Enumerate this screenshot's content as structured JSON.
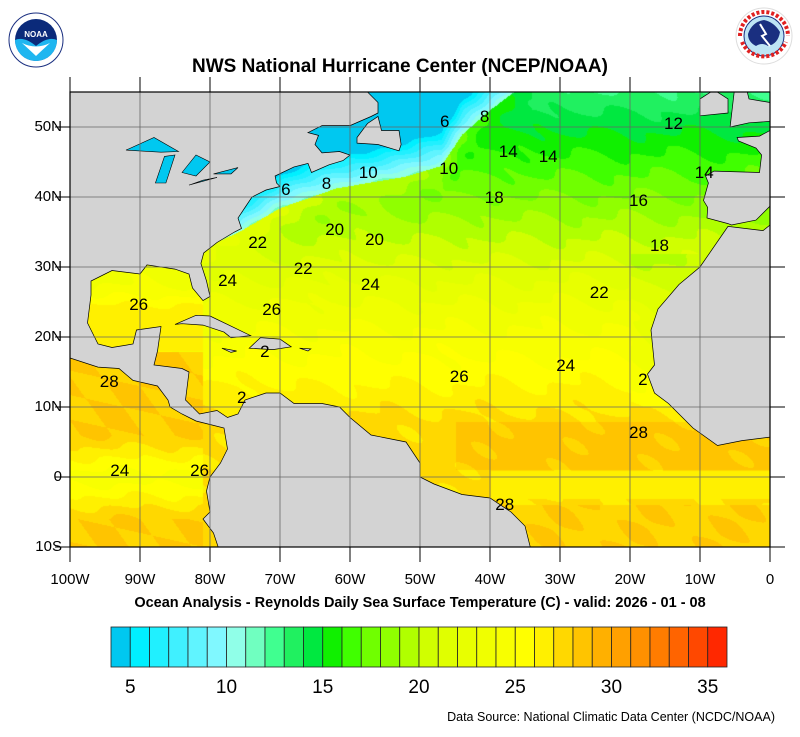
{
  "header": {
    "title": "NWS National Hurricane Center (NCEP/NOAA)",
    "left_logo": {
      "name": "noaa-logo",
      "text": "NOAA"
    },
    "right_logo": {
      "name": "nws-logo",
      "text": "NATIONAL WEATHER SERVICE"
    }
  },
  "map": {
    "lat_labels": [
      "50N",
      "40N",
      "30N",
      "20N",
      "10N",
      "0",
      "10S"
    ],
    "lat_values": [
      50,
      40,
      30,
      20,
      10,
      0,
      -10
    ],
    "lon_labels": [
      "100W",
      "90W",
      "80W",
      "70W",
      "60W",
      "50W",
      "40W",
      "30W",
      "20W",
      "10W",
      "0"
    ],
    "lon_values": [
      -100,
      -90,
      -80,
      -70,
      -60,
      -50,
      -40,
      -30,
      -20,
      -10,
      0
    ],
    "extent": {
      "lon": [
        -100,
        0
      ],
      "lat": [
        -10,
        55
      ]
    },
    "land_color": "#d3d3d3",
    "contour_labels": [
      {
        "text": "6",
        "lon": -46,
        "lat": 50.7
      },
      {
        "text": "8",
        "lon": -40.3,
        "lat": 51.4
      },
      {
        "text": "12",
        "lon": -14,
        "lat": 50.4
      },
      {
        "text": "14",
        "lon": -37.6,
        "lat": 46.4
      },
      {
        "text": "14",
        "lon": -31.9,
        "lat": 45.7
      },
      {
        "text": "10",
        "lon": -46.1,
        "lat": 44
      },
      {
        "text": "14",
        "lon": -9.6,
        "lat": 43.4
      },
      {
        "text": "6",
        "lon": -68.7,
        "lat": 41
      },
      {
        "text": "8",
        "lon": -62.9,
        "lat": 41.9
      },
      {
        "text": "10",
        "lon": -57.6,
        "lat": 43.4
      },
      {
        "text": "18",
        "lon": -39.6,
        "lat": 39.9
      },
      {
        "text": "16",
        "lon": -19,
        "lat": 39.4
      },
      {
        "text": "20",
        "lon": -62.4,
        "lat": 35.3
      },
      {
        "text": "22",
        "lon": -73.4,
        "lat": 33.4
      },
      {
        "text": "20",
        "lon": -56.7,
        "lat": 33.9
      },
      {
        "text": "18",
        "lon": -16,
        "lat": 33
      },
      {
        "text": "22",
        "lon": -66.9,
        "lat": 29.7
      },
      {
        "text": "24",
        "lon": -77.7,
        "lat": 28
      },
      {
        "text": "24",
        "lon": -57.3,
        "lat": 27.4
      },
      {
        "text": "22",
        "lon": -24.6,
        "lat": 26.3
      },
      {
        "text": "26",
        "lon": -90.4,
        "lat": 24.6
      },
      {
        "text": "26",
        "lon": -71.4,
        "lat": 23.9
      },
      {
        "text": "2",
        "lon": -71.7,
        "lat": 17.9
      },
      {
        "text": "24",
        "lon": -29.4,
        "lat": 15.9
      },
      {
        "text": "2",
        "lon": -17.7,
        "lat": 13.9
      },
      {
        "text": "28",
        "lon": -94.6,
        "lat": 13.6
      },
      {
        "text": "26",
        "lon": -44.6,
        "lat": 14.3
      },
      {
        "text": "2",
        "lon": -75,
        "lat": 11.3
      },
      {
        "text": "28",
        "lon": -19,
        "lat": 6.3
      },
      {
        "text": "24",
        "lon": -93.1,
        "lat": 0.9
      },
      {
        "text": "26",
        "lon": -81.7,
        "lat": 0.9
      },
      {
        "text": "28",
        "lon": -38.1,
        "lat": -4
      }
    ]
  },
  "subtitle": "Ocean Analysis - Reynolds Daily Sea Surface Temperature (C) - valid: 2026 - 01 - 08",
  "colorbar": {
    "min": 4,
    "max": 36,
    "step": 1,
    "tick_values": [
      5,
      10,
      15,
      20,
      25,
      30,
      35
    ],
    "tick_labels": [
      "5",
      "10",
      "15",
      "20",
      "25",
      "30",
      "35"
    ],
    "colors": [
      "#00c8f0",
      "#00f0ff",
      "#20f0ff",
      "#40f0ff",
      "#60f4ff",
      "#80f8ff",
      "#90ffe8",
      "#70ffc0",
      "#40ff90",
      "#20f060",
      "#00e840",
      "#10f000",
      "#40ff00",
      "#70ff00",
      "#90ff00",
      "#b0ff00",
      "#d0ff00",
      "#e0ff00",
      "#e8ff00",
      "#f0ff00",
      "#f8ff00",
      "#ffff00",
      "#fff000",
      "#ffd800",
      "#ffc400",
      "#ffb000",
      "#ffa000",
      "#ff9000",
      "#ff7c00",
      "#ff6400",
      "#ff4800",
      "#ff2800"
    ]
  },
  "footer": {
    "source": "Data Source: National Climatic Data Center (NCDC/NOAA)"
  }
}
